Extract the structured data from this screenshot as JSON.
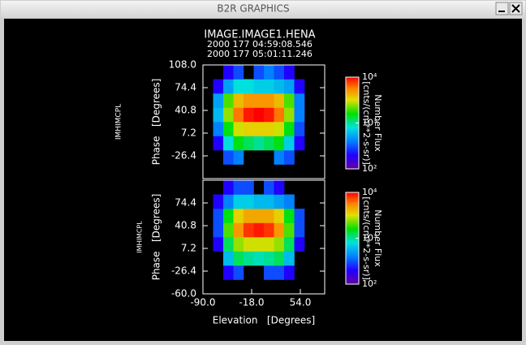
{
  "window": {
    "title": "B2R GRAPHICS"
  },
  "chart_data": [
    {
      "type": "heatmap",
      "title": "IMAGE.IMAGE1.HENA",
      "subtitle": [
        "2000 177 04:59:08.546",
        "2000 177 05:01:11.246"
      ],
      "side_label": "IMHIMCPL",
      "ylabel": "Phase   [Degrees]",
      "xlim": [
        -90,
        90
      ],
      "ylim": [
        -60,
        108
      ],
      "yticks": [
        {
          "value": 108,
          "label": "108.0"
        },
        {
          "value": 74.4,
          "label": "74.4"
        },
        {
          "value": 40.8,
          "label": "40.8"
        },
        {
          "value": 7.2,
          "label": "7.2"
        },
        {
          "value": -26.4,
          "label": "-26.4"
        }
      ],
      "xbins": [
        -90,
        -75,
        -60,
        -45,
        -30,
        -15,
        0,
        15,
        30,
        45,
        60,
        75,
        90
      ],
      "ybins": [
        -60,
        -39,
        -18,
        3,
        24,
        45,
        66,
        87,
        108
      ],
      "z": [
        [
          null,
          null,
          null,
          null,
          null,
          null,
          null,
          null,
          null,
          null,
          null,
          null
        ],
        [
          null,
          null,
          300,
          400,
          null,
          null,
          null,
          400,
          300,
          null,
          null,
          null
        ],
        [
          null,
          200,
          800,
          1500,
          1200,
          1000,
          1200,
          1500,
          700,
          200,
          null,
          null
        ],
        [
          null,
          400,
          1500,
          3000,
          3500,
          3500,
          3500,
          3000,
          1500,
          300,
          null,
          null
        ],
        [
          null,
          600,
          2500,
          6000,
          9000,
          10000,
          9000,
          6000,
          2500,
          400,
          null,
          null
        ],
        [
          null,
          500,
          2000,
          4000,
          5000,
          5000,
          5000,
          4000,
          2000,
          400,
          null,
          null
        ],
        [
          null,
          200,
          500,
          800,
          800,
          700,
          700,
          600,
          500,
          200,
          null,
          null
        ],
        [
          null,
          null,
          200,
          300,
          null,
          300,
          400,
          300,
          200,
          null,
          null,
          null
        ]
      ],
      "zscale": "log",
      "zlim": [
        100,
        10000
      ],
      "zticks": [
        {
          "value": 10000,
          "label": "10⁴"
        },
        {
          "value": 1000,
          "label": "10³"
        },
        {
          "value": 100,
          "label": "10²"
        }
      ],
      "colorbar_label": [
        "Number Flux",
        "[cnts/(cm**2-s-sr)]"
      ]
    },
    {
      "type": "heatmap",
      "side_label": "IMHIMCPL",
      "ylabel": "Phase   [Degrees]",
      "xlabel": "Elevation   [Degrees]",
      "xlim": [
        -90,
        90
      ],
      "ylim": [
        -60,
        108
      ],
      "xticks": [
        {
          "value": -90,
          "label": "-90.0"
        },
        {
          "value": -18,
          "label": "-18.0"
        },
        {
          "value": 54,
          "label": "54.0"
        }
      ],
      "yticks": [
        {
          "value": 74.4,
          "label": "74.4"
        },
        {
          "value": 40.8,
          "label": "40.8"
        },
        {
          "value": 7.2,
          "label": "7.2"
        },
        {
          "value": -26.4,
          "label": "-26.4"
        },
        {
          "value": -60,
          "label": "-60.0"
        }
      ],
      "xbins": [
        -90,
        -75,
        -60,
        -45,
        -30,
        -15,
        0,
        15,
        30,
        45,
        60,
        75,
        90
      ],
      "ybins": [
        -60,
        -39,
        -18,
        3,
        24,
        45,
        66,
        87,
        108
      ],
      "z": [
        [
          null,
          null,
          null,
          null,
          null,
          null,
          null,
          null,
          null,
          null,
          null,
          null
        ],
        [
          null,
          null,
          200,
          300,
          null,
          null,
          300,
          300,
          200,
          null,
          null,
          null
        ],
        [
          null,
          null,
          600,
          1200,
          1000,
          900,
          1000,
          1200,
          600,
          null,
          null,
          null
        ],
        [
          null,
          200,
          1200,
          2500,
          3000,
          3000,
          3000,
          2500,
          1200,
          200,
          null,
          null
        ],
        [
          null,
          300,
          2000,
          5000,
          8000,
          9000,
          8000,
          5000,
          2000,
          300,
          null,
          null
        ],
        [
          null,
          300,
          1500,
          3500,
          4500,
          4500,
          4500,
          3500,
          1500,
          300,
          null,
          null
        ],
        [
          null,
          200,
          400,
          700,
          700,
          600,
          600,
          500,
          400,
          null,
          null,
          null
        ],
        [
          null,
          null,
          200,
          300,
          300,
          null,
          300,
          200,
          null,
          null,
          null,
          null
        ]
      ],
      "zscale": "log",
      "zlim": [
        100,
        10000
      ],
      "zticks": [
        {
          "value": 10000,
          "label": "10⁴"
        },
        {
          "value": 1000,
          "label": "10³"
        },
        {
          "value": 100,
          "label": "10²"
        }
      ],
      "colorbar_label": [
        "Number Flux",
        "[cnts/(cm**2-s-sr)]"
      ]
    }
  ]
}
